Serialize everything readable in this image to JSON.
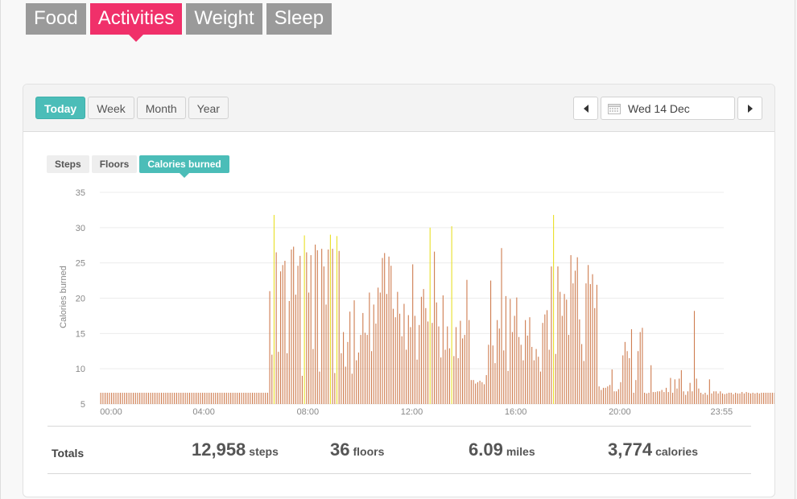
{
  "top_tabs": [
    {
      "label": "Food",
      "active": false
    },
    {
      "label": "Activities",
      "active": true
    },
    {
      "label": "Weight",
      "active": false
    },
    {
      "label": "Sleep",
      "active": false
    }
  ],
  "period_tabs": [
    {
      "label": "Today",
      "active": true
    },
    {
      "label": "Week",
      "active": false
    },
    {
      "label": "Month",
      "active": false
    },
    {
      "label": "Year",
      "active": false
    }
  ],
  "date": {
    "label": "Wed 14 Dec"
  },
  "metric_tabs": [
    {
      "label": "Steps",
      "active": false
    },
    {
      "label": "Floors",
      "active": false
    },
    {
      "label": "Calories burned",
      "active": true
    }
  ],
  "totals": {
    "label": "Totals",
    "steps": {
      "value": "12,958",
      "unit": "steps"
    },
    "floors": {
      "value": "36",
      "unit": "floors"
    },
    "miles": {
      "value": "6.09",
      "unit": "miles"
    },
    "calories": {
      "value": "3,774",
      "unit": "calories"
    }
  },
  "colors": {
    "bar": "#cf7e52",
    "bar_highlight": "#e9e02a",
    "accent": "#4bbdb8",
    "tab_active": "#f0306a"
  },
  "chart_data": {
    "type": "bar",
    "ylabel": "Calories burned",
    "ylim": [
      5,
      35
    ],
    "yticks": [
      5,
      10,
      15,
      20,
      25,
      30,
      35
    ],
    "xtick_labels": [
      "00:00",
      "04:00",
      "08:00",
      "12:00",
      "16:00",
      "20:00",
      "23:55"
    ],
    "xtick_minutes": [
      0,
      240,
      480,
      720,
      960,
      1200,
      1435
    ],
    "interval_minutes": 5,
    "grid": true,
    "series": [
      {
        "values": [
          6.6,
          6.6,
          6.6,
          6.6,
          6.6,
          6.6,
          6.6,
          6.6,
          6.6,
          6.6,
          6.6,
          6.6,
          6.6,
          6.6,
          6.6,
          6.6,
          6.6,
          6.6,
          6.6,
          6.6,
          6.6,
          6.6,
          6.6,
          6.6,
          6.6,
          6.6,
          6.6,
          6.6,
          6.6,
          6.6,
          6.6,
          6.6,
          6.6,
          6.6,
          6.6,
          6.6,
          6.6,
          6.6,
          6.6,
          6.6,
          6.6,
          6.6,
          6.6,
          6.6,
          6.6,
          6.6,
          6.6,
          6.6,
          6.6,
          6.6,
          6.6,
          6.6,
          6.6,
          6.6,
          6.6,
          6.6,
          6.6,
          6.6,
          6.6,
          6.6,
          6.6,
          6.6,
          6.6,
          6.6,
          6.6,
          6.6,
          6.6,
          6.6,
          6.6,
          6.6,
          6.6,
          6.6,
          6.6,
          6.6,
          6.6,
          6.6,
          6.6,
          6.6,
          21.0,
          12.0,
          31.8,
          26.5,
          12.4,
          23.8,
          24.7,
          25.3,
          12.2,
          19.6,
          26.9,
          27.3,
          20.5,
          24.6,
          26.0,
          9.0,
          28.9,
          26.5,
          20.8,
          26.1,
          12.8,
          27.6,
          26.8,
          9.6,
          27.0,
          24.5,
          19.1,
          26.9,
          29.0,
          27.0,
          9.4,
          28.8,
          26.7,
          12.2,
          15.2,
          10.3,
          13.8,
          18.1,
          9.3,
          19.7,
          11.2,
          12.3,
          14.8,
          17.9,
          15.1,
          14.8,
          20.8,
          12.5,
          19.1,
          16.4,
          21.5,
          20.8,
          25.7,
          26.4,
          20.6,
          25.9,
          24.6,
          18.5,
          17.3,
          20.9,
          17.8,
          14.6,
          19.2,
          12.7,
          17.6,
          15.9,
          24.8,
          17.5,
          11.3,
          16.2,
          20.2,
          21.3,
          18.6,
          16.7,
          30.0,
          16.5,
          26.6,
          19.4,
          16.0,
          11.6,
          20.4,
          12.7,
          16.0,
          12.9,
          30.2,
          11.8,
          15.9,
          11.5,
          16.8,
          14.3,
          14.8,
          22.6,
          16.9,
          8.4,
          8.4,
          7.9,
          8.1,
          8.3,
          8.1,
          7.8,
          9.1,
          13.4,
          22.5,
          13.3,
          10.8,
          16.9,
          15.7,
          27.1,
          12.6,
          20.3,
          9.7,
          19.9,
          15.2,
          17.5,
          20.1,
          14.5,
          13.4,
          11.2,
          16.9,
          14.7,
          17.3,
          13.1,
          11.2,
          12.8,
          11.7,
          9.6,
          16.5,
          17.7,
          18.3,
          12.7,
          24.5,
          31.8,
          12.1,
          24.5,
          20.9,
          17.5,
          20.6,
          19.8,
          14.8,
          26.1,
          22.1,
          23.9,
          25.8,
          17.0,
          13.5,
          11.1,
          22.1,
          24.7,
          22.0,
          23.4,
          18.6,
          21.9,
          7.5,
          7.0,
          7.3,
          7.3,
          7.5,
          7.7,
          9.9,
          6.8,
          6.8,
          7.1,
          8.1,
          11.9,
          13.8,
          12.5,
          11.5,
          15.6,
          6.6,
          8.4,
          12.5,
          15.2,
          15.8,
          6.6,
          6.5,
          6.6,
          10.5,
          6.7,
          6.7,
          6.8,
          6.8,
          7.0,
          6.7,
          7.3,
          6.7,
          8.7,
          6.6,
          8.5,
          7.2,
          8.6,
          9.8,
          6.8,
          6.3,
          6.8,
          8.0,
          6.8,
          18.2,
          8.6,
          7.2,
          6.6,
          6.4,
          6.6,
          6.3,
          8.5,
          6.5,
          6.8,
          6.8,
          6.5,
          6.8,
          6.5,
          6.4,
          6.5,
          6.6,
          6.6,
          6.4,
          6.6,
          6.5,
          6.5,
          6.7,
          6.5,
          6.7,
          6.6,
          6.5,
          6.6,
          6.5,
          6.6,
          6.5,
          6.6,
          6.6,
          6.6,
          6.6,
          6.6,
          6.6,
          6.6
        ],
        "highlight_threshold": 28
      }
    ]
  }
}
